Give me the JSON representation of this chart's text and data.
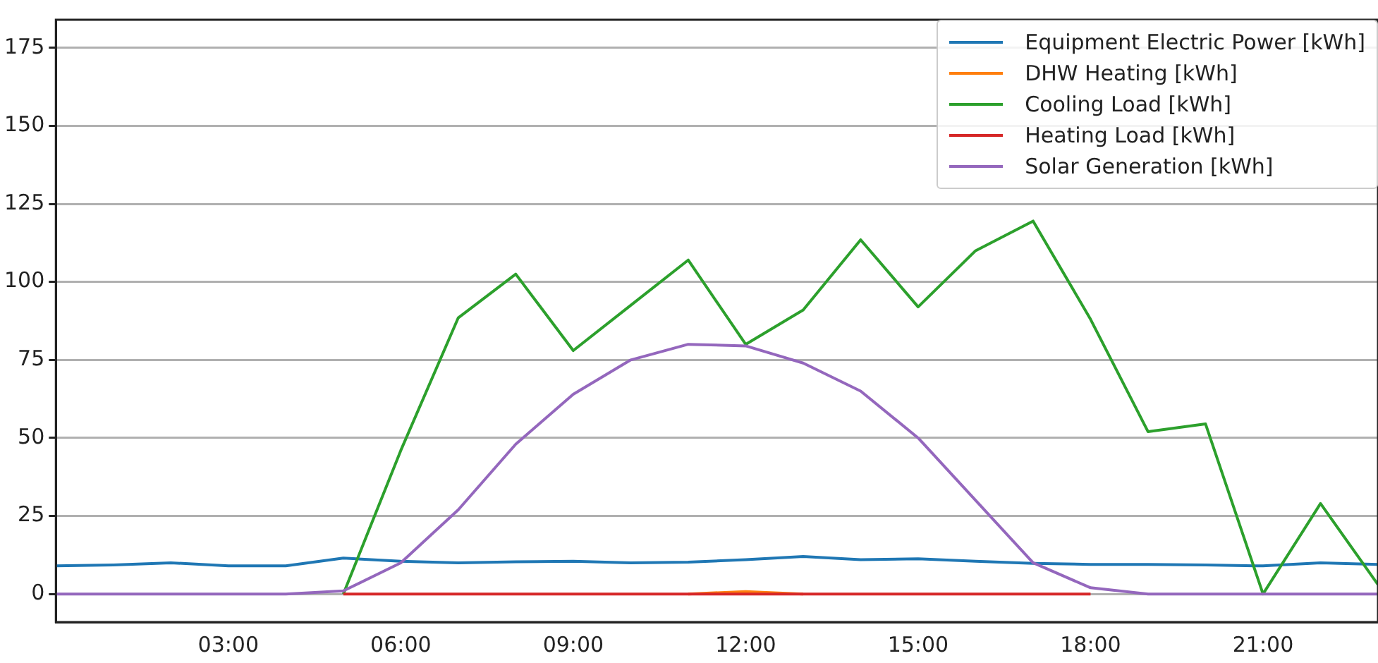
{
  "chart_data": {
    "type": "line",
    "x": [
      0,
      1,
      2,
      3,
      4,
      5,
      6,
      7,
      8,
      9,
      10,
      11,
      12,
      13,
      14,
      15,
      16,
      17,
      18,
      19,
      20,
      21,
      22,
      23
    ],
    "series": [
      {
        "name": "Equipment Electric Power [kWh]",
        "color": "#1f77b4",
        "values": [
          9,
          9.3,
          10,
          9,
          9,
          11.5,
          10.5,
          10,
          10.3,
          10.5,
          10,
          10.2,
          11,
          12,
          11,
          11.3,
          10.5,
          9.8,
          9.5,
          9.5,
          9.3,
          9,
          10,
          9.5
        ]
      },
      {
        "name": "DHW Heating [kWh]",
        "color": "#ff7f0e",
        "values": [
          null,
          null,
          null,
          null,
          null,
          null,
          null,
          null,
          null,
          null,
          null,
          0,
          0.8,
          0,
          null,
          null,
          null,
          null,
          null,
          null,
          null,
          null,
          null,
          null
        ]
      },
      {
        "name": "Cooling Load [kWh]",
        "color": "#2ca02c",
        "values": [
          null,
          null,
          null,
          null,
          null,
          0,
          46,
          88.5,
          102.5,
          78,
          92.5,
          107,
          80,
          91,
          113.5,
          92,
          110,
          119.5,
          88,
          52,
          54.5,
          0,
          29,
          3
        ]
      },
      {
        "name": "Heating Load [kWh]",
        "color": "#d62728",
        "values": [
          null,
          null,
          null,
          null,
          null,
          0,
          0,
          0,
          0,
          0,
          0,
          0,
          0,
          0,
          0,
          0,
          0,
          0,
          0,
          null,
          null,
          null,
          null,
          null
        ]
      },
      {
        "name": "Solar Generation [kWh]",
        "color": "#9467bd",
        "values": [
          0,
          0,
          0,
          0,
          0,
          1,
          10,
          27,
          48,
          64,
          75,
          80,
          79.5,
          74,
          65,
          50,
          30,
          10,
          2,
          0,
          0,
          0,
          0,
          0
        ]
      }
    ],
    "xlim": [
      0,
      23
    ],
    "xticks": [
      {
        "value": 3,
        "label": "03:00"
      },
      {
        "value": 6,
        "label": "06:00"
      },
      {
        "value": 9,
        "label": "09:00"
      },
      {
        "value": 12,
        "label": "12:00"
      },
      {
        "value": 15,
        "label": "15:00"
      },
      {
        "value": 18,
        "label": "18:00"
      },
      {
        "value": 21,
        "label": "21:00"
      }
    ],
    "ylim": [
      -9,
      184
    ],
    "yticks": [
      0,
      25,
      50,
      75,
      100,
      125,
      150,
      175
    ],
    "grid": "y",
    "legend": "top right",
    "marker": "none",
    "line_style": "solid"
  }
}
